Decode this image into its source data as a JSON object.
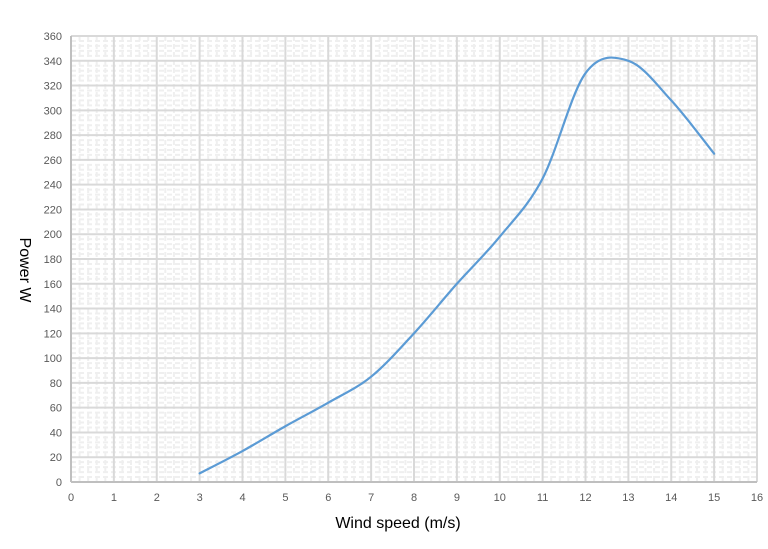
{
  "chart_data": {
    "type": "line",
    "title": "",
    "xlabel": "Wind speed (m/s)",
    "ylabel": "Power W",
    "xlim": [
      0,
      16
    ],
    "ylim": [
      0,
      360
    ],
    "x_ticks": [
      0,
      1,
      2,
      3,
      4,
      5,
      6,
      7,
      8,
      9,
      10,
      11,
      12,
      13,
      14,
      15,
      16
    ],
    "y_ticks": [
      0,
      20,
      40,
      60,
      80,
      100,
      120,
      140,
      160,
      180,
      200,
      220,
      240,
      260,
      280,
      300,
      320,
      340,
      360
    ],
    "grid": {
      "major": true,
      "minor": true
    },
    "legend": null,
    "series": [
      {
        "name": "Power",
        "color": "#5B9BD5",
        "smooth": true,
        "x": [
          3,
          4,
          5,
          6,
          7,
          8,
          9,
          10,
          11,
          12,
          13,
          14,
          15
        ],
        "values": [
          7,
          25,
          45,
          64,
          85,
          120,
          160,
          198,
          245,
          330,
          340,
          308,
          265
        ]
      }
    ]
  },
  "colors": {
    "major_grid": "#d9d9d9",
    "minor_grid": "#efefef",
    "axis": "#bfbfbf",
    "line": "#5B9BD5"
  }
}
